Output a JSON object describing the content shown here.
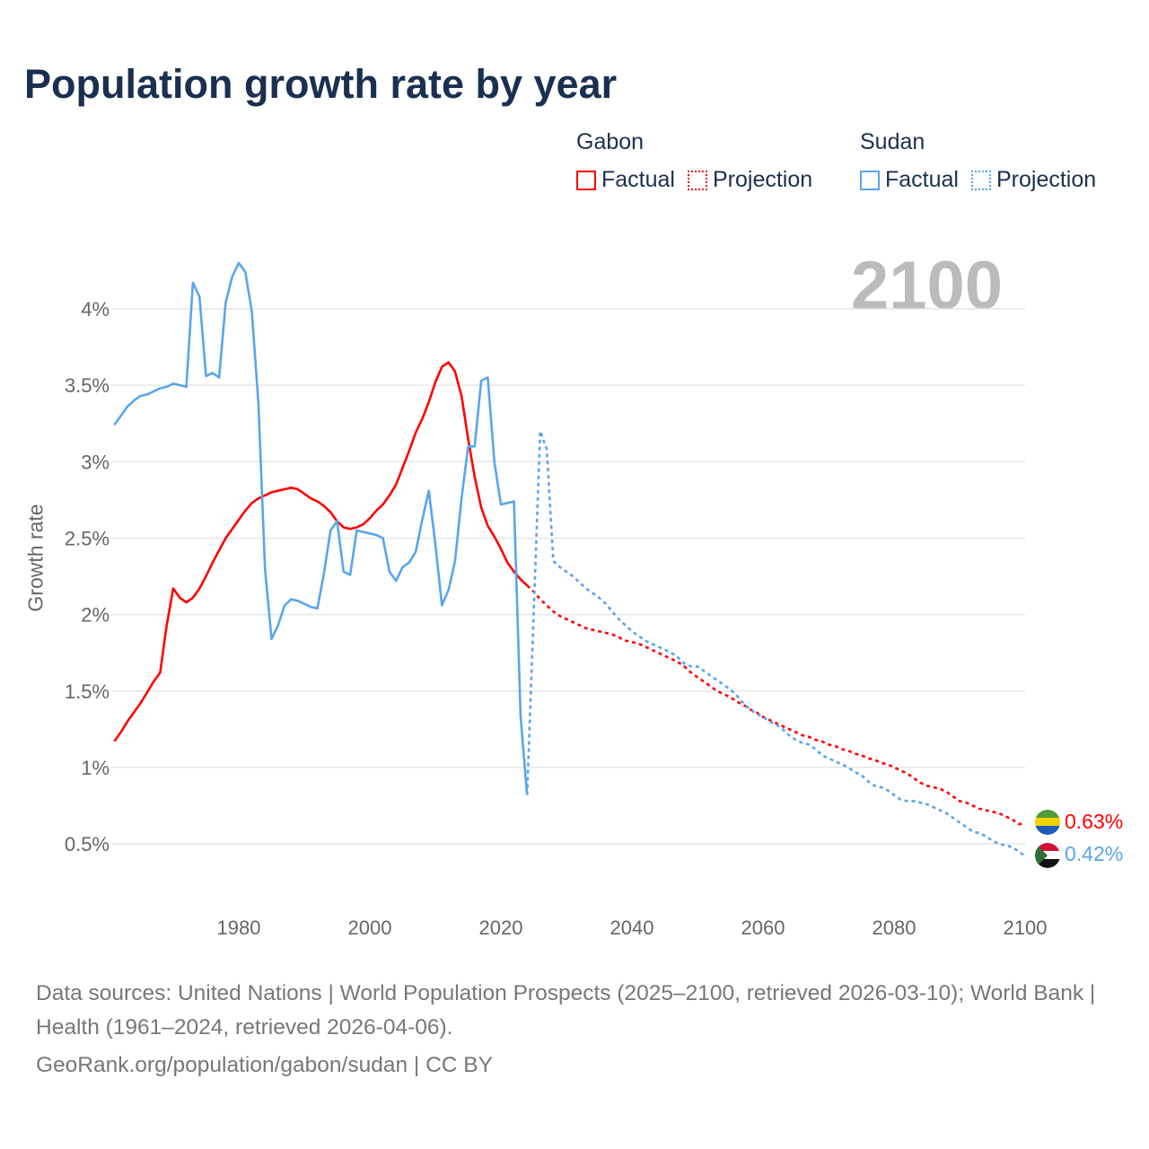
{
  "title": "Population growth rate by year",
  "legend": {
    "groups": [
      {
        "name": "Gabon",
        "factual": "Factual",
        "projection": "Projection",
        "color": "#ff0000"
      },
      {
        "name": "Sudan",
        "factual": "Factual",
        "projection": "Projection",
        "color": "#5aa5ec"
      }
    ]
  },
  "current_year": "2100",
  "end_labels": {
    "gabon": "0.63%",
    "sudan": "0.42%"
  },
  "footer": {
    "sources": "Data sources: United Nations | World Population Prospects (2025–2100, retrieved 2026-03-10); World Bank | Health (1961–2024, retrieved 2026-04-06).",
    "credit": "GeoRank.org/population/gabon/sudan | CC BY"
  },
  "chart_data": {
    "type": "line",
    "title": "Population growth rate by year",
    "xlabel": "",
    "ylabel": "Growth rate",
    "xlim": [
      1961,
      2100
    ],
    "ylim": [
      0.3,
      4.4
    ],
    "x_ticks": [
      "1980",
      "2000",
      "2020",
      "2040",
      "2060",
      "2080",
      "2100"
    ],
    "x_tick_values": [
      1980,
      2000,
      2020,
      2040,
      2060,
      2080,
      2100
    ],
    "y_ticks": [
      "0.5%",
      "1%",
      "1.5%",
      "2%",
      "2.5%",
      "3%",
      "3.5%",
      "4%"
    ],
    "y_tick_values": [
      0.5,
      1,
      1.5,
      2,
      2.5,
      3,
      3.5,
      4
    ],
    "grid": true,
    "series": [
      {
        "name": "Gabon Factual",
        "color": "#ff0000",
        "style": "solid",
        "start_year": 1961,
        "values": [
          1.17,
          1.23,
          1.3,
          1.36,
          1.42,
          1.49,
          1.56,
          1.62,
          1.93,
          2.17,
          2.11,
          2.08,
          2.11,
          2.17,
          2.25,
          2.34,
          2.42,
          2.5,
          2.56,
          2.62,
          2.68,
          2.73,
          2.76,
          2.78,
          2.8,
          2.81,
          2.82,
          2.83,
          2.82,
          2.79,
          2.76,
          2.74,
          2.71,
          2.67,
          2.61,
          2.57,
          2.56,
          2.57,
          2.59,
          2.63,
          2.68,
          2.72,
          2.78,
          2.85,
          2.96,
          3.07,
          3.19,
          3.28,
          3.39,
          3.52,
          3.62,
          3.65,
          3.59,
          3.43,
          3.15,
          2.9,
          2.7,
          2.58,
          2.51,
          2.43,
          2.34,
          2.28,
          2.23,
          2.19
        ]
      },
      {
        "name": "Gabon Projection",
        "color": "#ff0000",
        "style": "dotted",
        "start_year": 2024,
        "values": [
          2.19,
          2.15,
          2.1,
          2.06,
          2.02,
          1.99,
          1.97,
          1.95,
          1.93,
          1.91,
          1.9,
          1.89,
          1.88,
          1.87,
          1.85,
          1.83,
          1.82,
          1.81,
          1.79,
          1.77,
          1.75,
          1.73,
          1.71,
          1.69,
          1.66,
          1.62,
          1.59,
          1.56,
          1.53,
          1.5,
          1.48,
          1.46,
          1.43,
          1.41,
          1.38,
          1.36,
          1.33,
          1.31,
          1.29,
          1.27,
          1.25,
          1.23,
          1.21,
          1.2,
          1.18,
          1.17,
          1.15,
          1.14,
          1.12,
          1.11,
          1.09,
          1.08,
          1.06,
          1.05,
          1.03,
          1.02,
          1.0,
          0.98,
          0.96,
          0.93,
          0.9,
          0.88,
          0.87,
          0.86,
          0.84,
          0.81,
          0.78,
          0.77,
          0.75,
          0.73,
          0.72,
          0.71,
          0.7,
          0.68,
          0.66,
          0.63,
          0.63
        ]
      },
      {
        "name": "Sudan Factual",
        "color": "#5aa5ec",
        "style": "solid",
        "start_year": 1961,
        "values": [
          3.24,
          3.3,
          3.36,
          3.4,
          3.43,
          3.44,
          3.46,
          3.48,
          3.49,
          3.51,
          3.5,
          3.49,
          4.17,
          4.08,
          3.56,
          3.58,
          3.55,
          4.04,
          4.21,
          4.3,
          4.24,
          3.98,
          3.38,
          2.3,
          1.84,
          1.93,
          2.06,
          2.1,
          2.09,
          2.07,
          2.05,
          2.04,
          2.27,
          2.55,
          2.61,
          2.28,
          2.26,
          2.55,
          2.54,
          2.53,
          2.52,
          2.5,
          2.28,
          2.22,
          2.31,
          2.34,
          2.41,
          2.62,
          2.81,
          2.46,
          2.06,
          2.16,
          2.35,
          2.76,
          3.1,
          3.1,
          3.53,
          3.55,
          3.0,
          2.72,
          2.73,
          2.74,
          1.34,
          0.82
        ]
      },
      {
        "name": "Sudan Projection",
        "color": "#5aa5ec",
        "style": "dotted",
        "start_year": 2024,
        "values": [
          0.82,
          2.0,
          3.2,
          3.08,
          2.35,
          2.31,
          2.28,
          2.25,
          2.21,
          2.17,
          2.14,
          2.11,
          2.07,
          2.02,
          1.97,
          1.93,
          1.89,
          1.86,
          1.83,
          1.81,
          1.79,
          1.77,
          1.75,
          1.72,
          1.68,
          1.66,
          1.66,
          1.63,
          1.6,
          1.57,
          1.54,
          1.51,
          1.47,
          1.42,
          1.38,
          1.35,
          1.33,
          1.3,
          1.28,
          1.25,
          1.21,
          1.18,
          1.16,
          1.15,
          1.12,
          1.08,
          1.06,
          1.04,
          1.02,
          1.0,
          0.97,
          0.95,
          0.91,
          0.88,
          0.87,
          0.85,
          0.82,
          0.79,
          0.78,
          0.78,
          0.77,
          0.76,
          0.74,
          0.72,
          0.7,
          0.67,
          0.64,
          0.61,
          0.58,
          0.57,
          0.55,
          0.52,
          0.5,
          0.49,
          0.48,
          0.45,
          0.42
        ]
      }
    ]
  }
}
